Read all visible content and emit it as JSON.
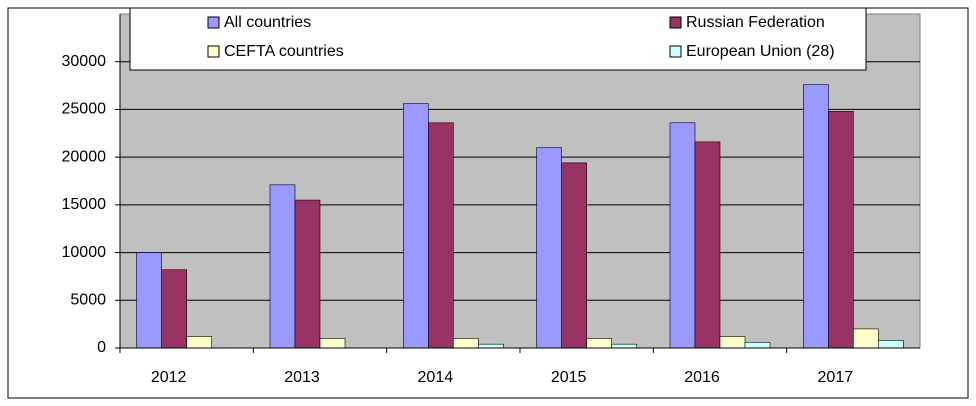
{
  "chart_data": {
    "type": "bar",
    "categories": [
      "2012",
      "2013",
      "2014",
      "2015",
      "2016",
      "2017"
    ],
    "series": [
      {
        "name": "All countries",
        "color": "#9999ff",
        "values": [
          10000,
          17100,
          25600,
          21000,
          23600,
          27600
        ]
      },
      {
        "name": "Russian Federation",
        "color": "#993366",
        "values": [
          8200,
          15500,
          23600,
          19400,
          21600,
          24800
        ]
      },
      {
        "name": "CEFTA countries",
        "color": "#ffffcc",
        "values": [
          1200,
          1000,
          1000,
          1000,
          1200,
          2000
        ]
      },
      {
        "name": "European Union (28)",
        "color": "#ccffff",
        "values": [
          0,
          0,
          400,
          400,
          600,
          800
        ]
      }
    ],
    "ylim": [
      0,
      35000
    ],
    "yticks": [
      0,
      5000,
      10000,
      15000,
      20000,
      25000,
      30000
    ],
    "grid": true,
    "legend": "top"
  }
}
